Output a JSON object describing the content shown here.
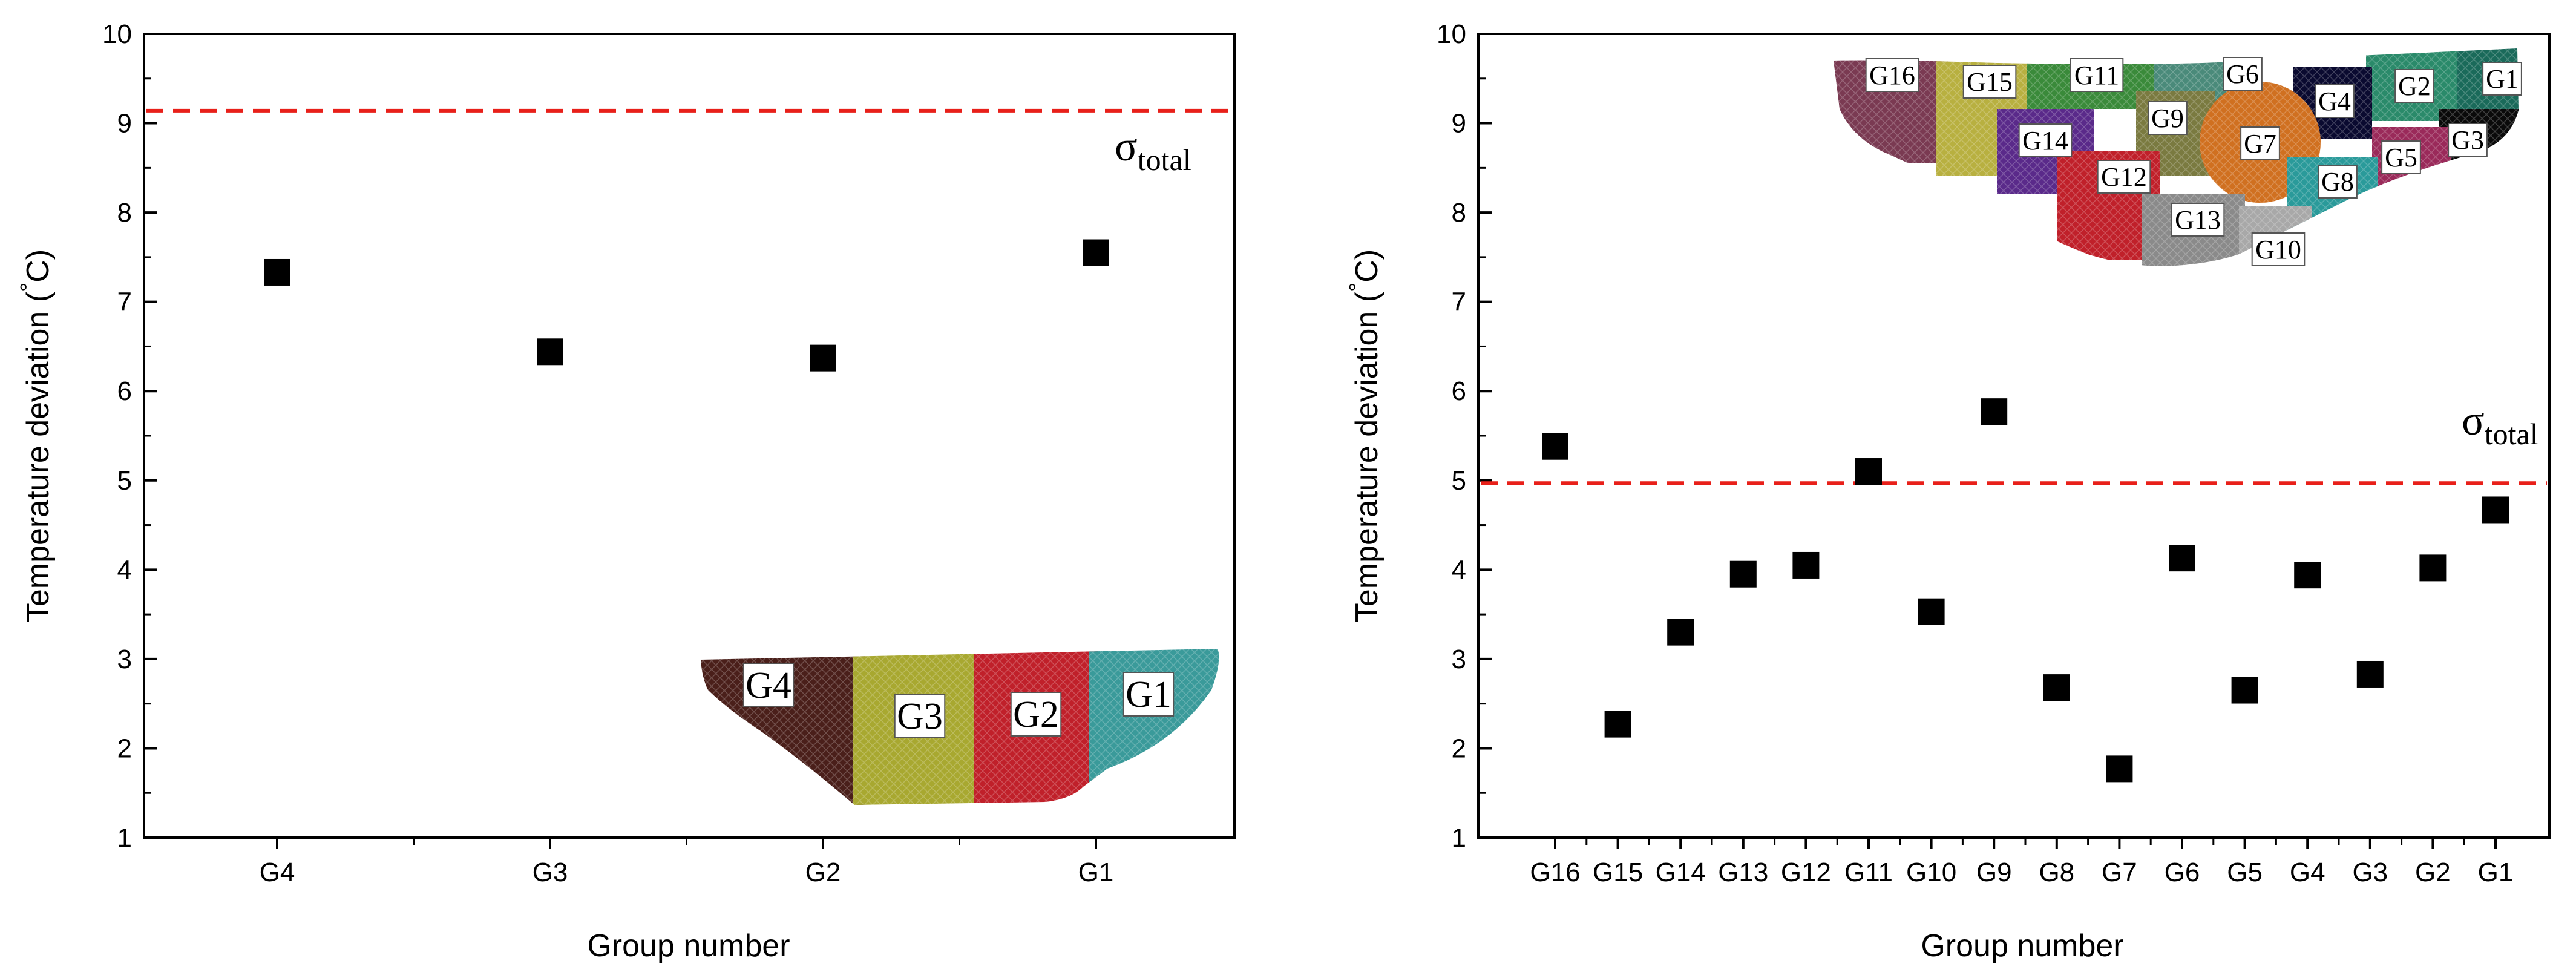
{
  "chart_data": [
    {
      "type": "scatter",
      "title": "",
      "xlabel": "Group number",
      "ylabel": "Temperature deviation (°C)",
      "ylabel_prefix": "Temperature deviation (",
      "ylabel_degree": "°",
      "ylabel_suffix": "C)",
      "ylim": [
        1,
        10
      ],
      "yticks": [
        "1",
        "2",
        "3",
        "4",
        "5",
        "6",
        "7",
        "8",
        "9",
        "10"
      ],
      "categories": [
        "G4",
        "G3",
        "G2",
        "G1"
      ],
      "values": [
        7.33,
        6.44,
        6.37,
        7.55
      ],
      "reference_line": {
        "label": "σ",
        "subscript": "total",
        "value": 9.14,
        "color": "#e8201a"
      },
      "marker_color": "#000000",
      "inset": {
        "labels": [
          "G4",
          "G3",
          "G2",
          "G1"
        ],
        "region_colors": [
          "#4a1f1a",
          "#a8a830",
          "#c0202a",
          "#3a9a9a"
        ]
      }
    },
    {
      "type": "scatter",
      "title": "",
      "xlabel": "Group number",
      "ylabel": "Temperature deviation (°C)",
      "ylabel_prefix": "Temperature deviation (",
      "ylabel_degree": "°",
      "ylabel_suffix": "C)",
      "ylim": [
        1,
        10
      ],
      "yticks": [
        "1",
        "2",
        "3",
        "4",
        "5",
        "6",
        "7",
        "8",
        "9",
        "10"
      ],
      "categories": [
        "G16",
        "G15",
        "G14",
        "G13",
        "G12",
        "G11",
        "G10",
        "G9",
        "G8",
        "G7",
        "G6",
        "G5",
        "G4",
        "G3",
        "G2",
        "G1"
      ],
      "values": [
        5.38,
        2.27,
        3.3,
        3.95,
        4.05,
        5.1,
        3.53,
        5.77,
        2.68,
        1.77,
        4.13,
        2.65,
        3.94,
        2.83,
        4.02,
        4.67
      ],
      "reference_line": {
        "label": "σ",
        "subscript": "total",
        "value": 4.97,
        "color": "#e8201a"
      },
      "marker_color": "#000000",
      "inset": {
        "labels": [
          "G16",
          "G15",
          "G11",
          "G6",
          "G2",
          "G1",
          "G4",
          "G9",
          "G14",
          "G7",
          "G3",
          "G5",
          "G12",
          "G8",
          "G13",
          "G10"
        ],
        "region_colors": [
          "#7a3a52",
          "#b8b040",
          "#3a8a3a",
          "#4a8a7a",
          "#2a8a6a",
          "#1a6a5a",
          "#0a0a30",
          "#7a7a40",
          "#5a2a8a",
          "#d07020",
          "#0a0a0a",
          "#9a2a5a",
          "#c0202a",
          "#2a9a9a",
          "#8a8a8a",
          "#a8a8a8"
        ]
      }
    }
  ]
}
